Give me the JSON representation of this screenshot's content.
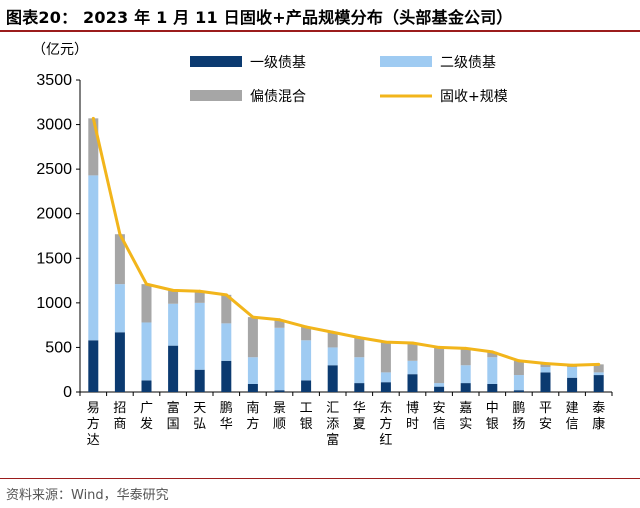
{
  "figure": {
    "title": "图表20： 2023 年 1 月 11 日固收+产品规模分布（头部基金公司）",
    "source": "资料来源：Wind，华泰研究"
  },
  "colors": {
    "level1": "#0b3a70",
    "level2": "#9fcbf2",
    "mixed": "#a6a6a6",
    "total": "#f2b51b",
    "rule": "#9b1c1c"
  },
  "chart_data": {
    "type": "bar",
    "stacked": true,
    "unit_label": "（亿元）",
    "ylim": [
      0,
      3500
    ],
    "yticks": [
      0,
      500,
      1000,
      1500,
      2000,
      2500,
      3000,
      3500
    ],
    "grid": false,
    "legend_position": "top",
    "categories": [
      "易方达",
      "招商",
      "广发",
      "富国",
      "天弘",
      "鹏华",
      "南方",
      "景顺",
      "工银",
      "汇添富",
      "华夏",
      "东方红",
      "博时",
      "安信",
      "嘉实",
      "中银",
      "鹏扬",
      "平安",
      "建信",
      "泰康"
    ],
    "series": [
      {
        "name": "一级债基",
        "type": "bar",
        "color": "#0b3a70",
        "values": [
          580,
          670,
          130,
          520,
          250,
          350,
          90,
          20,
          130,
          300,
          100,
          110,
          200,
          60,
          100,
          90,
          20,
          220,
          160,
          190
        ]
      },
      {
        "name": "二级债基",
        "type": "bar",
        "color": "#9fcbf2",
        "values": [
          1850,
          540,
          650,
          470,
          750,
          420,
          300,
          700,
          450,
          200,
          290,
          110,
          150,
          40,
          200,
          300,
          170,
          60,
          120,
          30
        ]
      },
      {
        "name": "偏债混合",
        "type": "bar",
        "color": "#a6a6a6",
        "values": [
          640,
          560,
          430,
          150,
          130,
          320,
          450,
          90,
          150,
          170,
          220,
          340,
          200,
          400,
          190,
          60,
          160,
          40,
          20,
          90
        ]
      },
      {
        "name": "固收+规模",
        "type": "line",
        "color": "#f2b51b",
        "values": [
          3070,
          1770,
          1210,
          1140,
          1130,
          1090,
          840,
          810,
          730,
          670,
          610,
          560,
          550,
          500,
          490,
          450,
          350,
          320,
          300,
          310
        ]
      }
    ]
  }
}
